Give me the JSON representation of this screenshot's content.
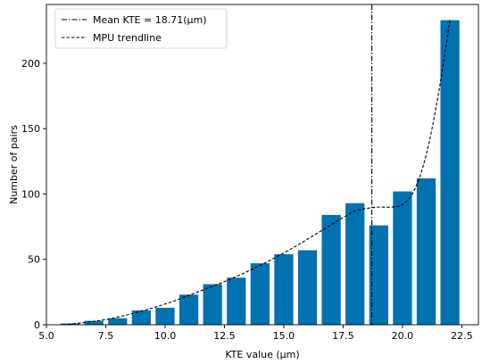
{
  "chart_data": {
    "type": "bar",
    "xlabel": "KTE value (µm)",
    "ylabel": "Number of pairs",
    "xlim": [
      5.0,
      23.2
    ],
    "ylim": [
      0,
      245
    ],
    "x_ticks": [
      5.0,
      7.5,
      10.0,
      12.5,
      15.0,
      17.5,
      20.0,
      22.5
    ],
    "x_tick_labels": [
      "5.0",
      "7.5",
      "10.0",
      "12.5",
      "15.0",
      "17.5",
      "20.0",
      "22.5"
    ],
    "y_ticks": [
      0,
      50,
      100,
      150,
      200
    ],
    "y_tick_labels": [
      "0",
      "50",
      "100",
      "150",
      "200"
    ],
    "bar_color": "#0072b2",
    "bar_width": 0.8,
    "bars": [
      {
        "x": 6.0,
        "value": 1
      },
      {
        "x": 7.0,
        "value": 3
      },
      {
        "x": 8.0,
        "value": 5
      },
      {
        "x": 9.0,
        "value": 11
      },
      {
        "x": 10.0,
        "value": 13
      },
      {
        "x": 11.0,
        "value": 23
      },
      {
        "x": 12.0,
        "value": 31
      },
      {
        "x": 13.0,
        "value": 36
      },
      {
        "x": 14.0,
        "value": 47
      },
      {
        "x": 15.0,
        "value": 54
      },
      {
        "x": 16.0,
        "value": 57
      },
      {
        "x": 17.0,
        "value": 84
      },
      {
        "x": 18.0,
        "value": 93
      },
      {
        "x": 19.0,
        "value": 76
      },
      {
        "x": 20.0,
        "value": 102
      },
      {
        "x": 21.0,
        "value": 112
      },
      {
        "x": 22.0,
        "value": 233
      }
    ],
    "mean_line": {
      "x": 18.71,
      "label": "Mean KTE = 18.71(µm)",
      "style": "dash-dot",
      "color": "#000000"
    },
    "trendline": {
      "label": "MPU trendline",
      "style": "dashed",
      "color": "#000000",
      "x": [
        5.7,
        6.5,
        7.5,
        8.5,
        9.5,
        10.5,
        11.5,
        12.5,
        13.5,
        14.5,
        15.5,
        16.5,
        17.5,
        18.0,
        18.5,
        19.0,
        19.5,
        20.0,
        20.5,
        21.0,
        21.5,
        22.0
      ],
      "y": [
        0,
        1.5,
        4,
        8,
        13,
        19,
        26,
        33,
        41,
        50,
        60,
        71,
        82,
        87,
        89,
        90,
        90,
        92,
        103,
        130,
        175,
        233
      ]
    },
    "legend": {
      "position": "top-left"
    },
    "grid": false
  }
}
